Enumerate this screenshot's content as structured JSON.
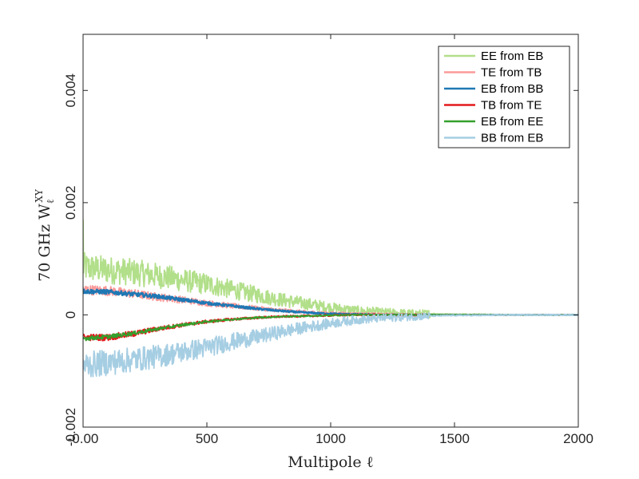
{
  "chart_data": {
    "type": "line",
    "title": "",
    "xlabel": "Multipole ℓ",
    "ylabel_parts": {
      "prefix": "70 GHz W",
      "sup": "XY",
      "sub": "ℓ"
    },
    "xlim": [
      0,
      2000
    ],
    "ylim": [
      -0.002,
      0.005
    ],
    "xticks": [
      0,
      500,
      1000,
      1500,
      2000
    ],
    "xtick_labels": [
      "-0.00",
      "500",
      "1000",
      "1500",
      "2000"
    ],
    "yticks": [
      -0.002,
      0,
      0.002,
      0.004
    ],
    "ytick_labels": [
      "-0.002",
      "0",
      "0.002",
      "0.004"
    ],
    "grid": false,
    "legend_position": "top-right",
    "x": [
      0,
      100,
      200,
      300,
      400,
      500,
      600,
      700,
      800,
      900,
      1000,
      1100,
      1200,
      1300,
      1400,
      1500,
      1600,
      1700,
      1800,
      1900,
      2000
    ],
    "series": [
      {
        "name": "EE from EB",
        "color": "#b2df8a",
        "noise": 0.00026,
        "values": [
          0.00085,
          0.0008,
          0.00076,
          0.0007,
          0.00062,
          0.00055,
          0.00045,
          0.00036,
          0.00027,
          0.0002,
          0.00013,
          8e-05,
          5e-05,
          3e-05,
          2e-05,
          1e-05,
          1e-05,
          0.0,
          0.0,
          0.0,
          0.0
        ]
      },
      {
        "name": "TE from TB",
        "color": "#fb9a99",
        "noise": 9e-05,
        "values": [
          0.00045,
          0.00043,
          0.00038,
          0.00032,
          0.00027,
          0.00021,
          0.00016,
          0.00012,
          8e-05,
          5e-05,
          3e-05,
          2e-05,
          1e-05,
          0.0,
          0.0,
          0.0,
          0.0,
          0.0,
          0.0,
          0.0,
          0.0
        ]
      },
      {
        "name": "EB from BB",
        "color": "#1f78b4",
        "noise": 4e-05,
        "values": [
          0.00042,
          0.00041,
          0.00037,
          0.00033,
          0.00027,
          0.00021,
          0.00016,
          0.00011,
          7e-05,
          4e-05,
          2e-05,
          1e-05,
          0.0,
          0.0,
          0.0,
          0.0,
          0.0,
          0.0,
          0.0,
          0.0,
          0.0
        ]
      },
      {
        "name": "TB from TE",
        "color": "#e31a1c",
        "noise": 6e-05,
        "values": [
          -0.0004,
          -0.0004,
          -0.00034,
          -0.00025,
          -0.00018,
          -0.00012,
          -8e-05,
          -5e-05,
          -3e-05,
          -2e-05,
          -1e-05,
          0.0,
          0.0,
          0.0,
          0.0,
          0.0,
          0.0,
          0.0,
          0.0,
          0.0,
          0.0
        ]
      },
      {
        "name": "EB from EE",
        "color": "#33a02c",
        "noise": 4e-05,
        "values": [
          -0.00042,
          -0.00039,
          -0.00033,
          -0.00025,
          -0.00018,
          -0.00012,
          -8e-05,
          -5e-05,
          -3e-05,
          -2e-05,
          -1e-05,
          0.0,
          0.0,
          0.0,
          0.0,
          0.0,
          0.0,
          0.0,
          0.0,
          0.0,
          0.0
        ]
      },
      {
        "name": "BB from EB",
        "color": "#a6cee3",
        "noise": 0.00024,
        "values": [
          -0.0009,
          -0.00085,
          -0.0008,
          -0.00074,
          -0.00066,
          -0.00058,
          -0.00048,
          -0.0004,
          -0.0003,
          -0.00022,
          -0.00015,
          -9e-05,
          -6e-05,
          -4e-05,
          -2e-05,
          -1e-05,
          -1e-05,
          0.0,
          0.0,
          0.0,
          0.0
        ]
      }
    ]
  }
}
